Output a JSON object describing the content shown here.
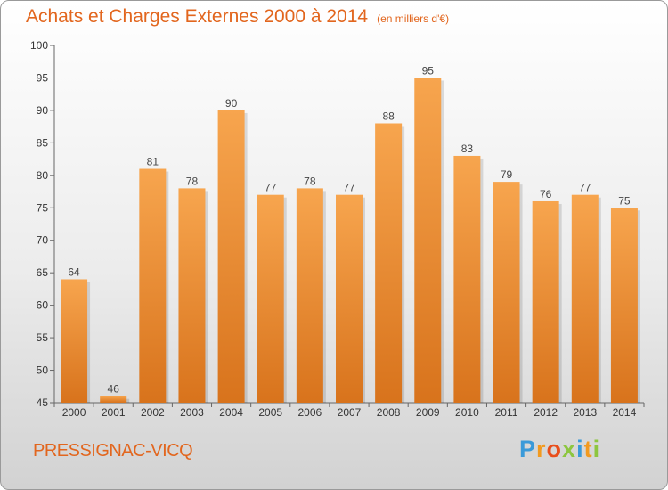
{
  "title": "Achats et Charges Externes 2000 à 2014",
  "subtitle": "(en milliers d'€)",
  "commune": "PRESSIGNAC-VICQ",
  "logo": {
    "letters": [
      "P",
      "r",
      "o",
      "x",
      "i",
      "t",
      "i"
    ],
    "colors": [
      "#3a9ad9",
      "#f29a1f",
      "#e94e1b",
      "#8dc63f",
      "#3a9ad9",
      "#f29a1f",
      "#8dc63f"
    ]
  },
  "colors": {
    "title": "#e2661e",
    "bar_top": "#f7a54e",
    "bar_bottom": "#d8731c"
  },
  "chart_data": {
    "type": "bar",
    "categories": [
      "2000",
      "2001",
      "2002",
      "2003",
      "2004",
      "2005",
      "2006",
      "2007",
      "2008",
      "2009",
      "2010",
      "2011",
      "2012",
      "2013",
      "2014"
    ],
    "values": [
      64,
      46,
      81,
      78,
      90,
      77,
      78,
      77,
      88,
      95,
      83,
      79,
      76,
      77,
      75
    ],
    "ylim": [
      45,
      100
    ],
    "yticks": [
      45,
      50,
      55,
      60,
      65,
      70,
      75,
      80,
      85,
      90,
      95,
      100
    ],
    "grid": false
  }
}
